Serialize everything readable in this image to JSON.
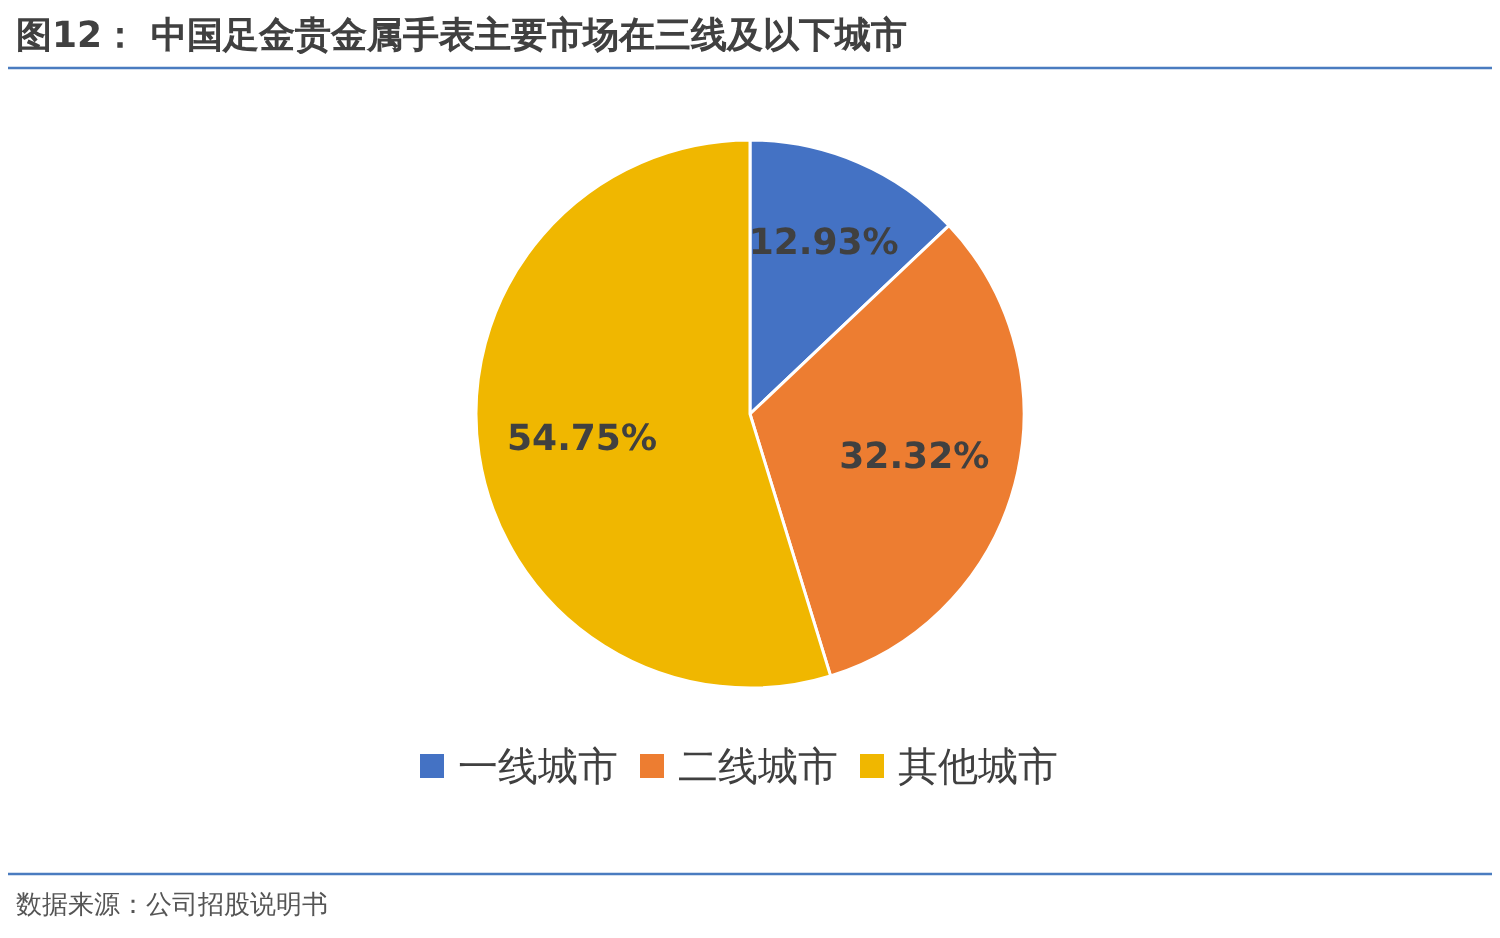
{
  "chart_data": {
    "type": "pie",
    "title": "图12：   中国足金贵金属手表主要市场在三线及以下城市",
    "categories": [
      "一线城市",
      "二线城市",
      "其他城市"
    ],
    "values": [
      12.93,
      32.32,
      54.75
    ],
    "colors": [
      "#4472c4",
      "#ed7d31",
      "#f0b700"
    ],
    "value_labels": [
      "12.93%",
      "32.32%",
      "54.75%"
    ],
    "legend": "bottom",
    "annotations": [
      "数据来源：公司招股说明书"
    ]
  }
}
